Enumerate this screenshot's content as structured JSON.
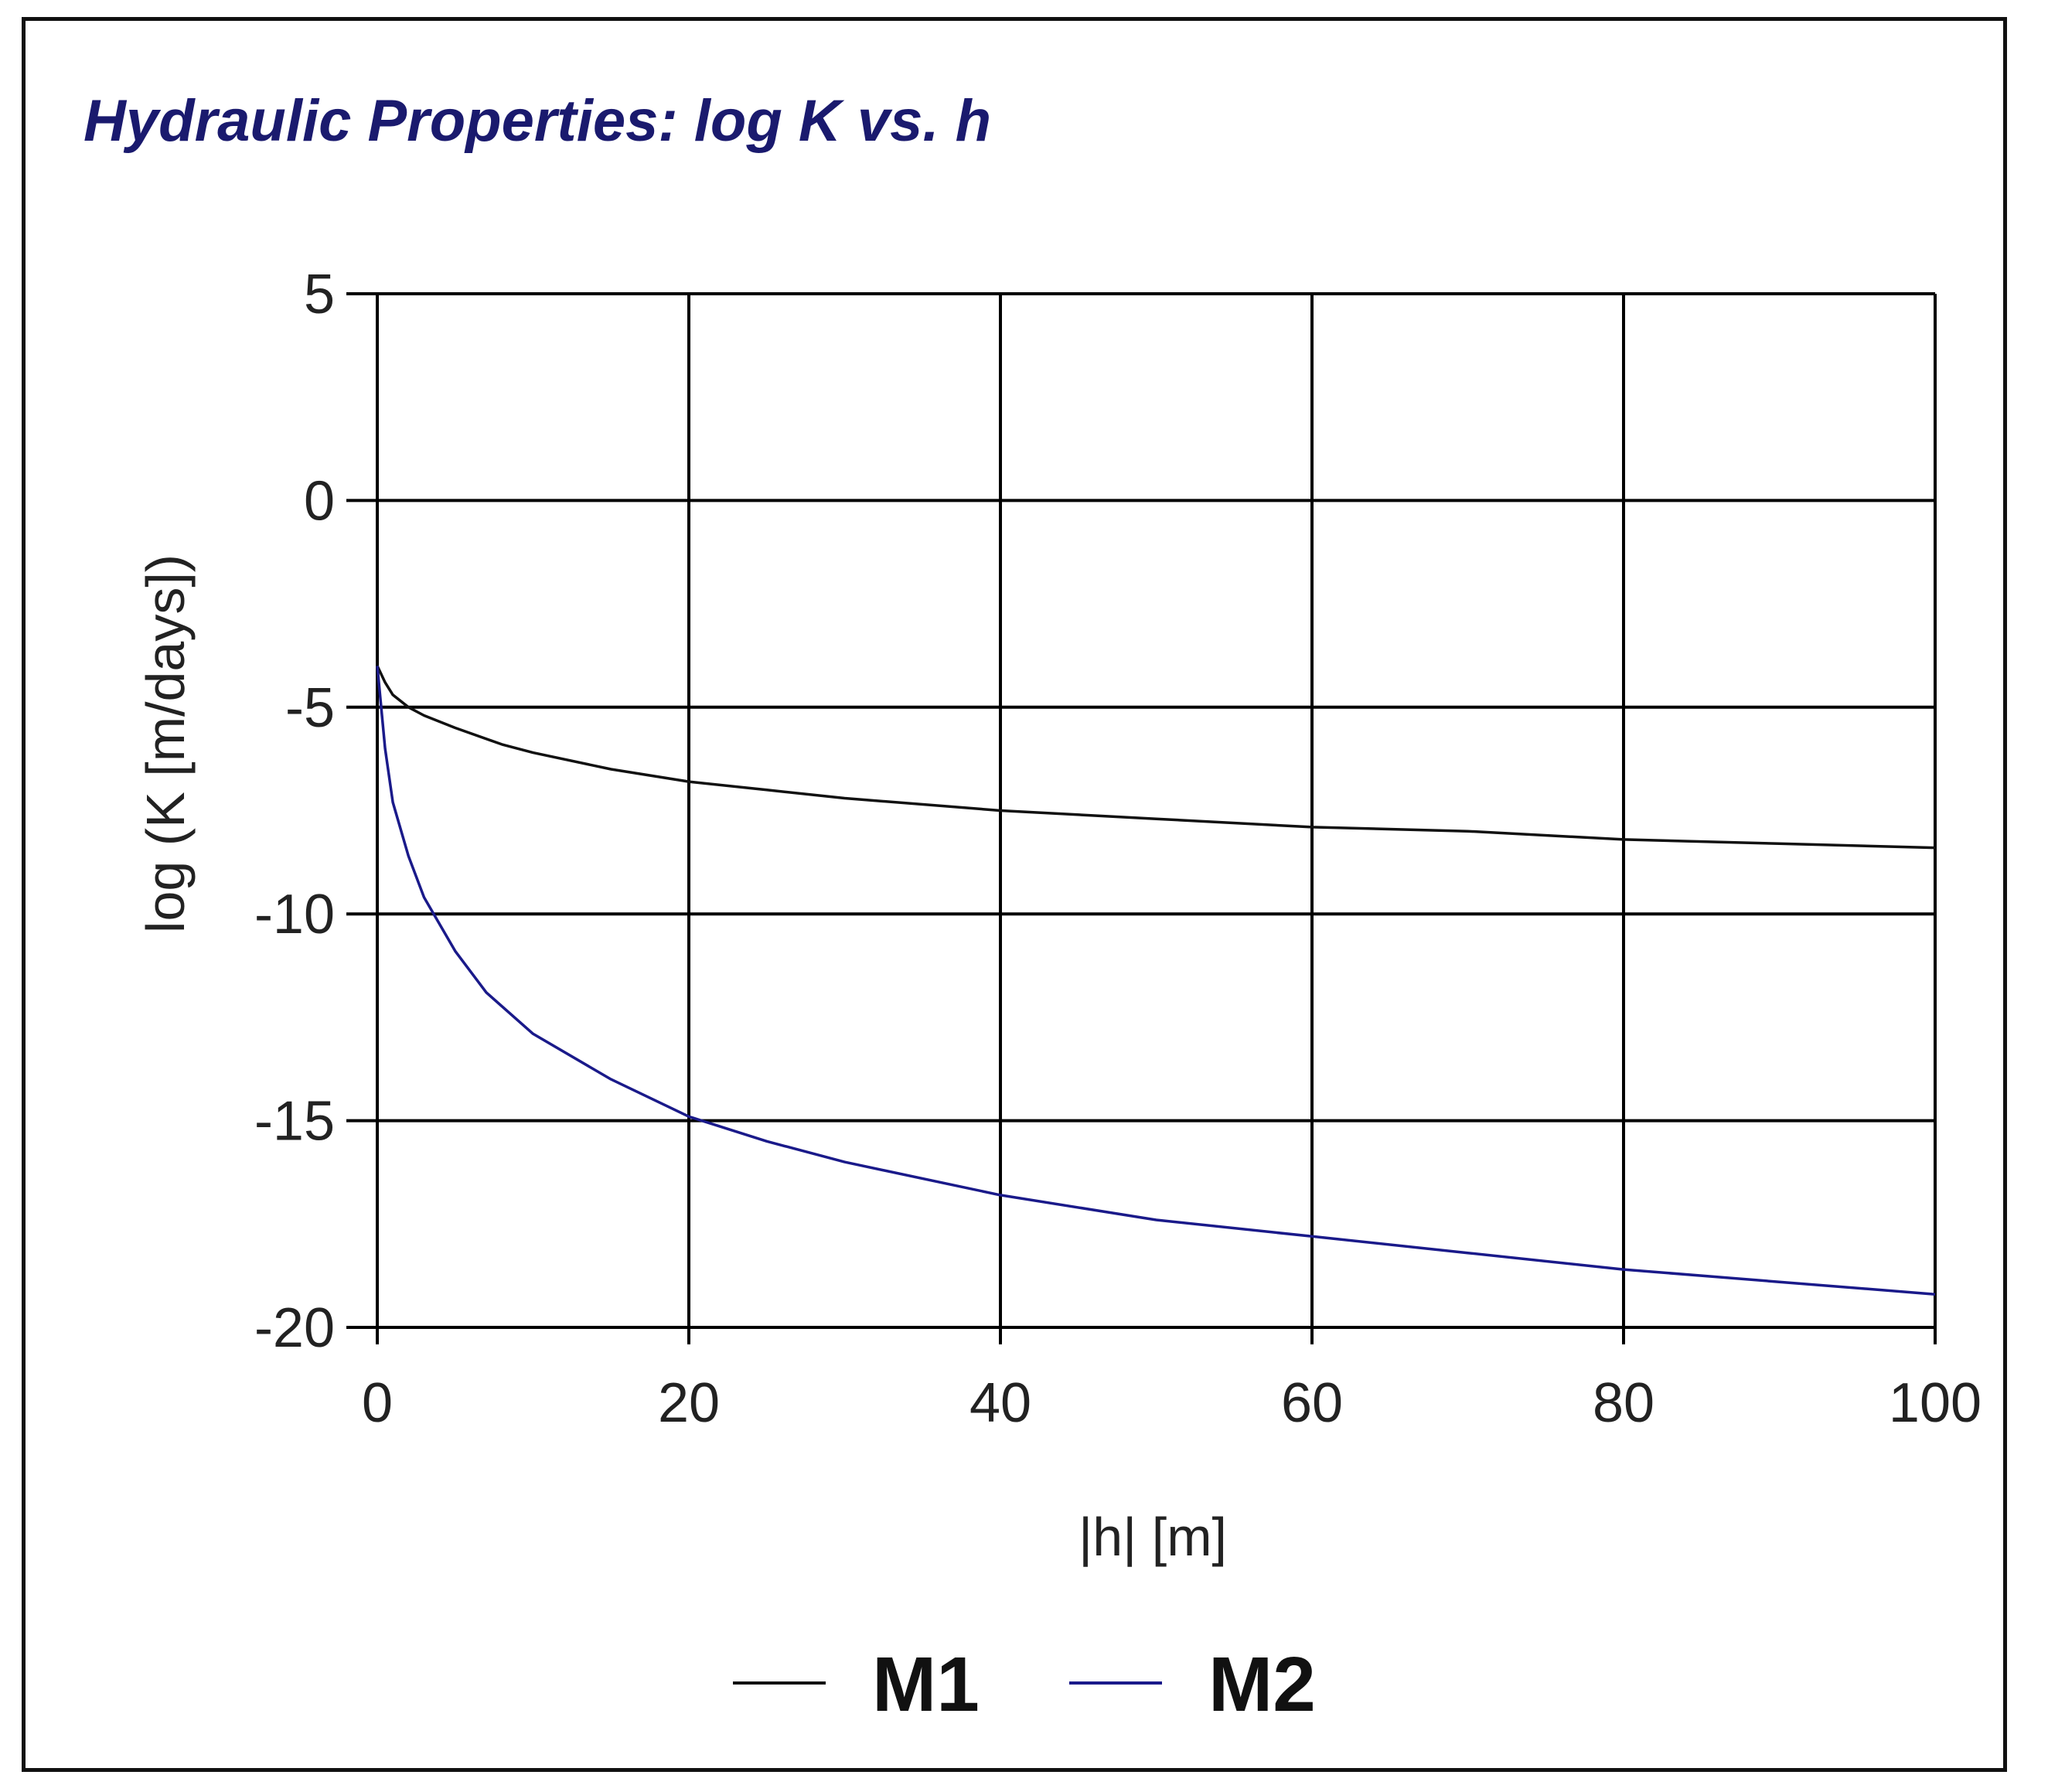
{
  "chart_data": {
    "type": "line",
    "title": "Hydraulic Properties:  log K  vs. h",
    "xlabel": "|h| [m]",
    "ylabel": "log (K [m/days])",
    "xlim": [
      0,
      100
    ],
    "ylim": [
      -20,
      5
    ],
    "xticks": [
      "0",
      "20",
      "40",
      "60",
      "80",
      "100"
    ],
    "yticks": [
      "5",
      "0",
      "-5",
      "-10",
      "-15",
      "-20"
    ],
    "grid": true,
    "legend_position": "bottom",
    "colors": {
      "title": "#1a1a6e",
      "axis": "#000000",
      "grid": "#000000",
      "m1": "#111111",
      "m2": "#1a1a8a"
    },
    "series": [
      {
        "name": "M1",
        "x": [
          0,
          0.5,
          1,
          2,
          3,
          5,
          8,
          10,
          15,
          20,
          25,
          30,
          40,
          50,
          60,
          70,
          80,
          90,
          100
        ],
        "y": [
          -4.0,
          -4.4,
          -4.7,
          -5.0,
          -5.2,
          -5.5,
          -5.9,
          -6.1,
          -6.5,
          -6.8,
          -7.0,
          -7.2,
          -7.5,
          -7.7,
          -7.9,
          -8.0,
          -8.2,
          -8.3,
          -8.4
        ]
      },
      {
        "name": "M2",
        "x": [
          0,
          0.5,
          1,
          2,
          3,
          5,
          7,
          10,
          15,
          20,
          25,
          30,
          40,
          50,
          60,
          70,
          80,
          90,
          100
        ],
        "y": [
          -4.0,
          -6.0,
          -7.3,
          -8.6,
          -9.6,
          -10.9,
          -11.9,
          -12.9,
          -14.0,
          -14.9,
          -15.5,
          -16.0,
          -16.8,
          -17.4,
          -17.8,
          -18.2,
          -18.6,
          -18.9,
          -19.2
        ]
      }
    ]
  }
}
